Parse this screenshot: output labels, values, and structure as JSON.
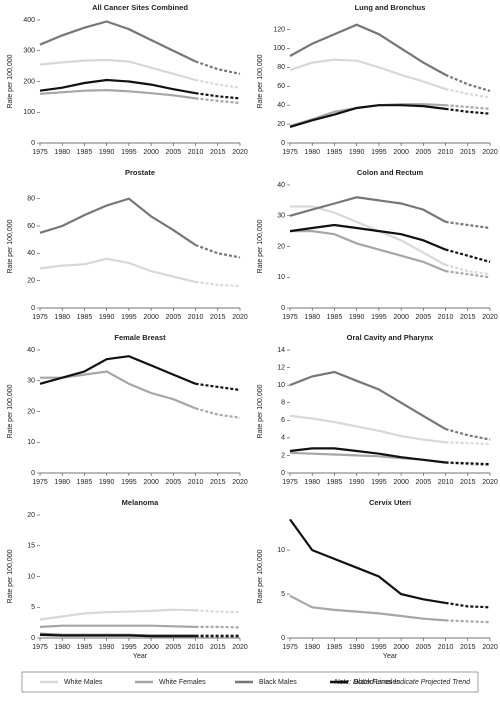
{
  "chart_data": [
    {
      "type": "line",
      "title": "All Cancer Sites Combined",
      "y_label": "Rate per 100,000",
      "x": [
        1975,
        1980,
        1985,
        1990,
        1995,
        2000,
        2005,
        2010,
        2015,
        2020
      ],
      "xlim": [
        1975,
        2020
      ],
      "xticks": [
        1975,
        1980,
        1985,
        1990,
        1995,
        2000,
        2005,
        2010,
        2015,
        2020
      ],
      "ylim": [
        0,
        400
      ],
      "yticks": [
        0,
        100,
        200,
        300,
        400
      ],
      "projected_from": 2010,
      "series": [
        {
          "name": "White Males",
          "color": "#d8d8d8",
          "values": [
            255,
            262,
            268,
            270,
            265,
            245,
            225,
            205,
            190,
            180
          ]
        },
        {
          "name": "White Females",
          "color": "#a6a6a6",
          "values": [
            160,
            165,
            170,
            172,
            168,
            162,
            155,
            145,
            137,
            130
          ]
        },
        {
          "name": "Black Males",
          "color": "#767676",
          "values": [
            320,
            350,
            375,
            395,
            370,
            335,
            300,
            265,
            240,
            225
          ]
        },
        {
          "name": "Black Females",
          "color": "#111111",
          "values": [
            170,
            180,
            195,
            205,
            200,
            190,
            175,
            162,
            152,
            145
          ]
        }
      ]
    },
    {
      "type": "line",
      "title": "Lung and Bronchus",
      "y_label": "Rate per 100,000",
      "x": [
        1975,
        1980,
        1985,
        1990,
        1995,
        2000,
        2005,
        2010,
        2015,
        2020
      ],
      "xlim": [
        1975,
        2020
      ],
      "xticks": [
        1975,
        1980,
        1985,
        1990,
        1995,
        2000,
        2005,
        2010,
        2015,
        2020
      ],
      "ylim": [
        0,
        130
      ],
      "yticks": [
        0,
        20,
        40,
        60,
        80,
        100,
        120
      ],
      "projected_from": 2010,
      "series": [
        {
          "name": "White Males",
          "color": "#d8d8d8",
          "values": [
            77,
            85,
            88,
            87,
            80,
            72,
            65,
            57,
            52,
            48
          ]
        },
        {
          "name": "White Females",
          "color": "#a6a6a6",
          "values": [
            18,
            25,
            33,
            37,
            40,
            41,
            41,
            40,
            38,
            36
          ]
        },
        {
          "name": "Black Males",
          "color": "#767676",
          "values": [
            92,
            105,
            115,
            125,
            115,
            100,
            85,
            72,
            62,
            55
          ]
        },
        {
          "name": "Black Females",
          "color": "#111111",
          "values": [
            17,
            24,
            30,
            37,
            40,
            40,
            39,
            36,
            33,
            31
          ]
        }
      ]
    },
    {
      "type": "line",
      "title": "Prostate",
      "y_label": "Rate per 100,000",
      "x": [
        1975,
        1980,
        1985,
        1990,
        1995,
        2000,
        2005,
        2010,
        2015,
        2020
      ],
      "xlim": [
        1975,
        2020
      ],
      "xticks": [
        1975,
        1980,
        1985,
        1990,
        1995,
        2000,
        2005,
        2010,
        2015,
        2020
      ],
      "ylim": [
        0,
        90
      ],
      "yticks": [
        0,
        20,
        40,
        60,
        80
      ],
      "projected_from": 2010,
      "series": [
        {
          "name": "White Males",
          "color": "#d8d8d8",
          "values": [
            29,
            31,
            32,
            36,
            33,
            27,
            23,
            19,
            17,
            16
          ]
        },
        {
          "name": "Black Males",
          "color": "#767676",
          "values": [
            55,
            60,
            68,
            75,
            80,
            67,
            57,
            46,
            40,
            37
          ]
        }
      ]
    },
    {
      "type": "line",
      "title": "Colon and Rectum",
      "y_label": "Rate per 100,000",
      "x": [
        1975,
        1980,
        1985,
        1990,
        1995,
        2000,
        2005,
        2010,
        2015,
        2020
      ],
      "xlim": [
        1975,
        2020
      ],
      "xticks": [
        1975,
        1980,
        1985,
        1990,
        1995,
        2000,
        2005,
        2010,
        2015,
        2020
      ],
      "ylim": [
        0,
        40
      ],
      "yticks": [
        0,
        10,
        20,
        30,
        40
      ],
      "projected_from": 2010,
      "series": [
        {
          "name": "White Males",
          "color": "#d8d8d8",
          "values": [
            33,
            33,
            31,
            28,
            25,
            22,
            18,
            14,
            12,
            11
          ]
        },
        {
          "name": "White Females",
          "color": "#a6a6a6",
          "values": [
            25,
            25,
            24,
            21,
            19,
            17,
            15,
            12,
            11,
            10
          ]
        },
        {
          "name": "Black Males",
          "color": "#767676",
          "values": [
            30,
            32,
            34,
            36,
            35,
            34,
            32,
            28,
            27,
            26
          ]
        },
        {
          "name": "Black Females",
          "color": "#111111",
          "values": [
            25,
            26,
            27,
            26,
            25,
            24,
            22,
            19,
            17,
            15
          ]
        }
      ]
    },
    {
      "type": "line",
      "title": "Female Breast",
      "y_label": "Rate per 100,000",
      "x": [
        1975,
        1980,
        1985,
        1990,
        1995,
        2000,
        2005,
        2010,
        2015,
        2020
      ],
      "xlim": [
        1975,
        2020
      ],
      "xticks": [
        1975,
        1980,
        1985,
        1990,
        1995,
        2000,
        2005,
        2010,
        2015,
        2020
      ],
      "ylim": [
        0,
        40
      ],
      "yticks": [
        0,
        10,
        20,
        30,
        40
      ],
      "projected_from": 2010,
      "series": [
        {
          "name": "White Females",
          "color": "#a6a6a6",
          "values": [
            31,
            31,
            32,
            33,
            29,
            26,
            24,
            21,
            19,
            18
          ]
        },
        {
          "name": "Black Females",
          "color": "#111111",
          "values": [
            29,
            31,
            33,
            37,
            38,
            35,
            32,
            29,
            28,
            27
          ]
        }
      ]
    },
    {
      "type": "line",
      "title": "Oral Cavity and Pharynx",
      "y_label": "Rate per 100,000",
      "x": [
        1975,
        1980,
        1985,
        1990,
        1995,
        2000,
        2005,
        2010,
        2015,
        2020
      ],
      "xlim": [
        1975,
        2020
      ],
      "xticks": [
        1975,
        1980,
        1985,
        1990,
        1995,
        2000,
        2005,
        2010,
        2015,
        2020
      ],
      "ylim": [
        0,
        14
      ],
      "yticks": [
        0,
        2,
        4,
        6,
        8,
        10,
        12,
        14
      ],
      "projected_from": 2010,
      "series": [
        {
          "name": "White Males",
          "color": "#d8d8d8",
          "values": [
            6.5,
            6.2,
            5.8,
            5.3,
            4.8,
            4.2,
            3.8,
            3.5,
            3.4,
            3.3
          ]
        },
        {
          "name": "White Females",
          "color": "#a6a6a6",
          "values": [
            2.3,
            2.2,
            2.1,
            2.0,
            1.9,
            1.7,
            1.5,
            1.2,
            1.0,
            0.9
          ]
        },
        {
          "name": "Black Males",
          "color": "#767676",
          "values": [
            10,
            11,
            11.5,
            10.5,
            9.5,
            8,
            6.5,
            5,
            4.3,
            3.8
          ]
        },
        {
          "name": "Black Females",
          "color": "#111111",
          "values": [
            2.5,
            2.8,
            2.8,
            2.5,
            2.2,
            1.8,
            1.5,
            1.2,
            1.1,
            1.0
          ]
        }
      ]
    },
    {
      "type": "line",
      "title": "Melanoma",
      "y_label": "Rate per 100,000",
      "x_label": "Year",
      "x": [
        1975,
        1980,
        1985,
        1990,
        1995,
        2000,
        2005,
        2010,
        2015,
        2020
      ],
      "xlim": [
        1975,
        2020
      ],
      "xticks": [
        1975,
        1980,
        1985,
        1990,
        1995,
        2000,
        2005,
        2010,
        2015,
        2020
      ],
      "ylim": [
        0,
        20
      ],
      "yticks": [
        0,
        5,
        10,
        15,
        20
      ],
      "projected_from": 2010,
      "series": [
        {
          "name": "White Males",
          "color": "#d8d8d8",
          "values": [
            3,
            3.5,
            4,
            4.2,
            4.3,
            4.4,
            4.6,
            4.5,
            4.3,
            4.2
          ]
        },
        {
          "name": "White Females",
          "color": "#a6a6a6",
          "values": [
            1.8,
            2,
            2,
            2,
            2,
            2,
            1.9,
            1.8,
            1.8,
            1.7
          ]
        },
        {
          "name": "Black Males",
          "color": "#767676",
          "values": [
            0.7,
            0.5,
            0.5,
            0.5,
            0.5,
            0.4,
            0.4,
            0.4,
            0.4,
            0.4
          ]
        },
        {
          "name": "Black Females",
          "color": "#111111",
          "values": [
            0.5,
            0.4,
            0.4,
            0.4,
            0.4,
            0.3,
            0.3,
            0.3,
            0.3,
            0.3
          ]
        }
      ]
    },
    {
      "type": "line",
      "title": "Cervix Uteri",
      "y_label": "Rate per 100,000",
      "x_label": "Year",
      "x": [
        1975,
        1980,
        1985,
        1990,
        1995,
        2000,
        2005,
        2010,
        2015,
        2020
      ],
      "xlim": [
        1975,
        2020
      ],
      "xticks": [
        1975,
        1980,
        1985,
        1990,
        1995,
        2000,
        2005,
        2010,
        2015,
        2020
      ],
      "ylim": [
        0,
        14
      ],
      "yticks": [
        0,
        5,
        10
      ],
      "projected_from": 2010,
      "series": [
        {
          "name": "White Females",
          "color": "#a6a6a6",
          "values": [
            4.8,
            3.5,
            3.2,
            3.0,
            2.8,
            2.5,
            2.2,
            2.0,
            1.9,
            1.8
          ]
        },
        {
          "name": "Black Females",
          "color": "#111111",
          "values": [
            13.5,
            10,
            9,
            8,
            7,
            5,
            4.4,
            4,
            3.6,
            3.5
          ]
        }
      ]
    }
  ],
  "note": "Note: Dotted Lines Indicate Projected Trend"
}
